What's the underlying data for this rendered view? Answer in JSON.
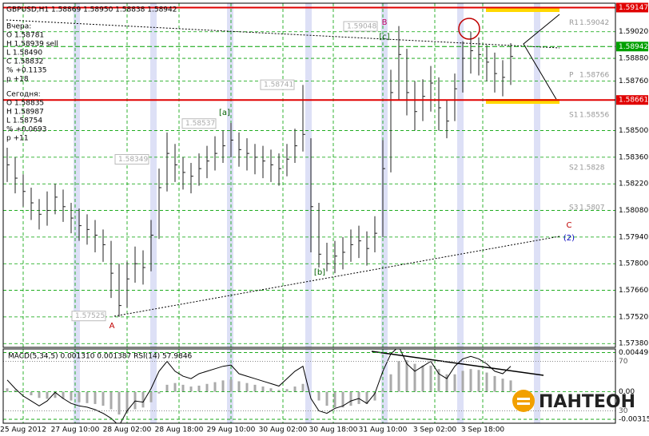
{
  "window_title": "GBPUSD,H1  1.58869 1.58950 1.58838 1.58942",
  "info": [
    "Вчера:",
    "O 1.58781",
    "H 1.58939 sell",
    "L 1.58490",
    "C 1.58832",
    "% +0.1135",
    "p +18",
    "Сегодня:",
    "O 1.58835",
    "H 1.58987",
    "L 1.58754",
    "% +0.0693",
    "p +11"
  ],
  "logo": "ПАНТЕОН",
  "chart_data": {
    "type": "ohlc",
    "xlim": [
      -0.5,
      76.1
    ],
    "xticks": [
      {
        "value": 2,
        "label": "25 Aug 2012"
      },
      {
        "value": 8.5,
        "label": "27 Aug 10:00"
      },
      {
        "value": 15,
        "label": "28 Aug 02:00"
      },
      {
        "value": 21.5,
        "label": "28 Aug 18:00"
      },
      {
        "value": 28,
        "label": "29 Aug 10:00"
      },
      {
        "value": 34.5,
        "label": "30 Aug 02:00"
      },
      {
        "value": 40.8,
        "label": "30 Aug 18:00"
      },
      {
        "value": 47,
        "label": "31 Aug 10:00"
      },
      {
        "value": 53.5,
        "label": "3 Sep 02:00"
      },
      {
        "value": 59.5,
        "label": "3 Sep 18:00"
      }
    ],
    "ylim": [
      1.5736,
      1.5917
    ],
    "yticks": [
      {
        "value": 1.5902,
        "label": "1.59020"
      },
      {
        "value": 1.5888,
        "label": "1.58880"
      },
      {
        "value": 1.5876,
        "label": "1.58760"
      },
      {
        "value": 1.585,
        "label": "1.58500"
      },
      {
        "value": 1.5836,
        "label": "1.58360"
      },
      {
        "value": 1.5822,
        "label": "1.58220"
      },
      {
        "value": 1.5808,
        "label": "1.58080"
      },
      {
        "value": 1.5794,
        "label": "1.57940"
      },
      {
        "value": 1.578,
        "label": "1.57800"
      },
      {
        "value": 1.5766,
        "label": "1.57660"
      },
      {
        "value": 1.5752,
        "label": "1.57520"
      },
      {
        "value": 1.5738,
        "label": "1.57380"
      }
    ],
    "grid": true,
    "color": "#222222",
    "high": [
      1.5841,
      1.5836,
      1.5827,
      1.582,
      1.5814,
      1.5818,
      1.5822,
      1.5819,
      1.5812,
      1.5809,
      1.5806,
      1.5803,
      1.5798,
      1.5792,
      1.578,
      1.5781,
      1.5789,
      1.5787,
      1.5803,
      1.583,
      1.5849,
      1.5843,
      1.5836,
      1.5833,
      1.5838,
      1.5842,
      1.5847,
      1.585,
      1.5854,
      1.5849,
      1.5846,
      1.5843,
      1.5842,
      1.584,
      1.5838,
      1.5843,
      1.5851,
      1.5874,
      1.5846,
      1.5812,
      1.5791,
      1.5792,
      1.5794,
      1.5798,
      1.58,
      1.5797,
      1.5805,
      1.5845,
      1.5882,
      1.5905,
      1.5893,
      1.5876,
      1.5877,
      1.5884,
      1.5878,
      1.5866,
      1.588,
      1.5897,
      1.5902,
      1.5899,
      1.5895,
      1.5891,
      1.5887,
      1.5896
    ],
    "low": [
      1.5823,
      1.5817,
      1.581,
      1.5803,
      1.5798,
      1.58,
      1.5806,
      1.5802,
      1.5796,
      1.5792,
      1.579,
      1.5786,
      1.5781,
      1.5762,
      1.5752,
      1.5757,
      1.577,
      1.5769,
      1.5776,
      1.5793,
      1.5818,
      1.5823,
      1.5819,
      1.5817,
      1.5821,
      1.5825,
      1.5829,
      1.5833,
      1.5836,
      1.5831,
      1.5829,
      1.5827,
      1.5825,
      1.5823,
      1.5821,
      1.5826,
      1.5833,
      1.5839,
      1.5786,
      1.5778,
      1.5776,
      1.5775,
      1.5777,
      1.5781,
      1.5783,
      1.5779,
      1.5786,
      1.5794,
      1.5828,
      1.5866,
      1.5858,
      1.585,
      1.5855,
      1.586,
      1.585,
      1.5846,
      1.5855,
      1.587,
      1.588,
      1.5879,
      1.5876,
      1.587,
      1.5868,
      1.5874
    ],
    "close": [
      1.5832,
      1.5825,
      1.5818,
      1.5812,
      1.5806,
      1.5808,
      1.5815,
      1.581,
      1.5804,
      1.58,
      1.5798,
      1.5795,
      1.579,
      1.5775,
      1.5758,
      1.5772,
      1.578,
      1.5778,
      1.5795,
      1.582,
      1.5838,
      1.5832,
      1.5828,
      1.5826,
      1.583,
      1.5834,
      1.5838,
      1.5842,
      1.5845,
      1.584,
      1.5838,
      1.5836,
      1.5834,
      1.5832,
      1.583,
      1.5835,
      1.5842,
      1.5848,
      1.581,
      1.5785,
      1.578,
      1.5784,
      1.5786,
      1.579,
      1.5792,
      1.5788,
      1.5796,
      1.583,
      1.587,
      1.589,
      1.587,
      1.586,
      1.5868,
      1.5875,
      1.5862,
      1.5855,
      1.5872,
      1.5888,
      1.5892,
      1.589,
      1.5886,
      1.588,
      1.5878,
      1.5889
    ],
    "levels": [
      {
        "value": 1.59147,
        "color": "#e00000"
      },
      {
        "value": 1.58942,
        "color": "#00a000"
      },
      {
        "value": 1.58661,
        "color": "#e00000"
      }
    ],
    "pivots": [
      {
        "name": "R1",
        "value": 1.59042
      },
      {
        "name": "P",
        "value": 1.58766
      },
      {
        "name": "S1",
        "value": 1.58556
      },
      {
        "name": "S2",
        "value": 1.5828
      },
      {
        "name": "S3",
        "value": 1.5807
      }
    ],
    "tags": [
      1.58741,
      1.58537,
      1.58349,
      1.57525,
      1.59048
    ],
    "annotations": [
      {
        "text": "A",
        "color": "#c00000"
      },
      {
        "text": "B",
        "color": "#c00060"
      },
      {
        "text": "C",
        "color": "#c00000"
      },
      {
        "text": "[a]",
        "color": "#006000"
      },
      {
        "text": "[b]",
        "color": "#006000"
      },
      {
        "text": "[c]",
        "color": "#006000"
      },
      {
        "text": "(2)",
        "color": "#0000c0"
      }
    ],
    "indicator_label": "MACD(5,34,5) 0.001310 0.001387  RSI(14) 57.9846",
    "macd": [
      0.0004,
      0.0002,
      -0.0001,
      -0.0004,
      -0.0007,
      -0.0008,
      -0.0007,
      -0.0008,
      -0.001,
      -0.0012,
      -0.0013,
      -0.0014,
      -0.0016,
      -0.002,
      -0.0026,
      -0.0024,
      -0.002,
      -0.0018,
      -0.0012,
      -0.0002,
      0.0008,
      0.001,
      0.0008,
      0.0006,
      0.0007,
      0.0009,
      0.0011,
      0.0013,
      0.0014,
      0.0012,
      0.001,
      0.0008,
      0.0006,
      0.0004,
      0.0002,
      0.0003,
      0.0006,
      0.0009,
      0.0,
      -0.001,
      -0.0016,
      -0.0018,
      -0.0018,
      -0.0016,
      -0.0014,
      -0.0014,
      -0.001,
      0.0002,
      0.002,
      0.0035,
      0.0036,
      0.0032,
      0.003,
      0.003,
      0.0026,
      0.002,
      0.002,
      0.0024,
      0.0026,
      0.0025,
      0.0022,
      0.0018,
      0.0015,
      0.0013
    ],
    "macd_lim": [
      -0.0036,
      0.0049
    ],
    "macd_ticks": [
      0.004493,
      {
        "value": 0,
        "label": "0.00"
      },
      -0.00315
    ],
    "rsi": [
      55,
      48,
      42,
      38,
      34,
      38,
      45,
      40,
      36,
      34,
      33,
      31,
      28,
      24,
      18,
      30,
      38,
      37,
      48,
      62,
      70,
      62,
      58,
      56,
      60,
      62,
      64,
      66,
      67,
      60,
      58,
      56,
      54,
      52,
      50,
      56,
      62,
      66,
      40,
      30,
      28,
      32,
      34,
      38,
      40,
      36,
      44,
      62,
      76,
      82,
      68,
      62,
      66,
      70,
      60,
      56,
      66,
      72,
      74,
      72,
      68,
      62,
      60,
      66
    ],
    "rsi_lim": [
      20,
      80
    ],
    "rsi_ticks": [
      70,
      30
    ]
  }
}
